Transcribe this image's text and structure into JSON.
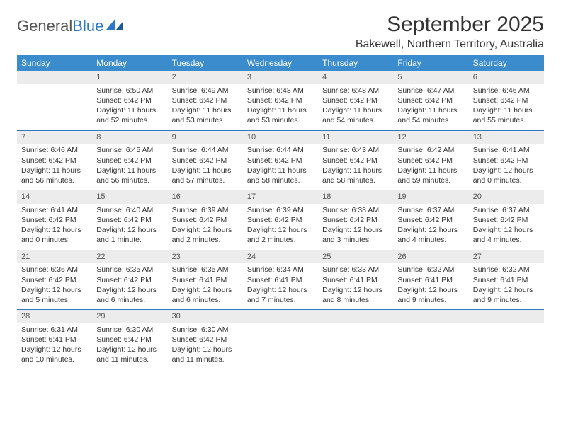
{
  "logo": {
    "text1": "General",
    "text2": "Blue"
  },
  "title": "September 2025",
  "location": "Bakewell, Northern Territory, Australia",
  "colors": {
    "header_bg": "#3b8ccc",
    "header_text": "#ffffff",
    "rule": "#2b78c5",
    "daynum_bg": "#ececec",
    "text": "#333333"
  },
  "weekday_labels": [
    "Sunday",
    "Monday",
    "Tuesday",
    "Wednesday",
    "Thursday",
    "Friday",
    "Saturday"
  ],
  "weeks": [
    [
      {
        "day": "",
        "sunrise": "",
        "sunset": "",
        "daylight": ""
      },
      {
        "day": "1",
        "sunrise": "Sunrise: 6:50 AM",
        "sunset": "Sunset: 6:42 PM",
        "daylight": "Daylight: 11 hours and 52 minutes."
      },
      {
        "day": "2",
        "sunrise": "Sunrise: 6:49 AM",
        "sunset": "Sunset: 6:42 PM",
        "daylight": "Daylight: 11 hours and 53 minutes."
      },
      {
        "day": "3",
        "sunrise": "Sunrise: 6:48 AM",
        "sunset": "Sunset: 6:42 PM",
        "daylight": "Daylight: 11 hours and 53 minutes."
      },
      {
        "day": "4",
        "sunrise": "Sunrise: 6:48 AM",
        "sunset": "Sunset: 6:42 PM",
        "daylight": "Daylight: 11 hours and 54 minutes."
      },
      {
        "day": "5",
        "sunrise": "Sunrise: 6:47 AM",
        "sunset": "Sunset: 6:42 PM",
        "daylight": "Daylight: 11 hours and 54 minutes."
      },
      {
        "day": "6",
        "sunrise": "Sunrise: 6:46 AM",
        "sunset": "Sunset: 6:42 PM",
        "daylight": "Daylight: 11 hours and 55 minutes."
      }
    ],
    [
      {
        "day": "7",
        "sunrise": "Sunrise: 6:46 AM",
        "sunset": "Sunset: 6:42 PM",
        "daylight": "Daylight: 11 hours and 56 minutes."
      },
      {
        "day": "8",
        "sunrise": "Sunrise: 6:45 AM",
        "sunset": "Sunset: 6:42 PM",
        "daylight": "Daylight: 11 hours and 56 minutes."
      },
      {
        "day": "9",
        "sunrise": "Sunrise: 6:44 AM",
        "sunset": "Sunset: 6:42 PM",
        "daylight": "Daylight: 11 hours and 57 minutes."
      },
      {
        "day": "10",
        "sunrise": "Sunrise: 6:44 AM",
        "sunset": "Sunset: 6:42 PM",
        "daylight": "Daylight: 11 hours and 58 minutes."
      },
      {
        "day": "11",
        "sunrise": "Sunrise: 6:43 AM",
        "sunset": "Sunset: 6:42 PM",
        "daylight": "Daylight: 11 hours and 58 minutes."
      },
      {
        "day": "12",
        "sunrise": "Sunrise: 6:42 AM",
        "sunset": "Sunset: 6:42 PM",
        "daylight": "Daylight: 11 hours and 59 minutes."
      },
      {
        "day": "13",
        "sunrise": "Sunrise: 6:41 AM",
        "sunset": "Sunset: 6:42 PM",
        "daylight": "Daylight: 12 hours and 0 minutes."
      }
    ],
    [
      {
        "day": "14",
        "sunrise": "Sunrise: 6:41 AM",
        "sunset": "Sunset: 6:42 PM",
        "daylight": "Daylight: 12 hours and 0 minutes."
      },
      {
        "day": "15",
        "sunrise": "Sunrise: 6:40 AM",
        "sunset": "Sunset: 6:42 PM",
        "daylight": "Daylight: 12 hours and 1 minute."
      },
      {
        "day": "16",
        "sunrise": "Sunrise: 6:39 AM",
        "sunset": "Sunset: 6:42 PM",
        "daylight": "Daylight: 12 hours and 2 minutes."
      },
      {
        "day": "17",
        "sunrise": "Sunrise: 6:39 AM",
        "sunset": "Sunset: 6:42 PM",
        "daylight": "Daylight: 12 hours and 2 minutes."
      },
      {
        "day": "18",
        "sunrise": "Sunrise: 6:38 AM",
        "sunset": "Sunset: 6:42 PM",
        "daylight": "Daylight: 12 hours and 3 minutes."
      },
      {
        "day": "19",
        "sunrise": "Sunrise: 6:37 AM",
        "sunset": "Sunset: 6:42 PM",
        "daylight": "Daylight: 12 hours and 4 minutes."
      },
      {
        "day": "20",
        "sunrise": "Sunrise: 6:37 AM",
        "sunset": "Sunset: 6:42 PM",
        "daylight": "Daylight: 12 hours and 4 minutes."
      }
    ],
    [
      {
        "day": "21",
        "sunrise": "Sunrise: 6:36 AM",
        "sunset": "Sunset: 6:42 PM",
        "daylight": "Daylight: 12 hours and 5 minutes."
      },
      {
        "day": "22",
        "sunrise": "Sunrise: 6:35 AM",
        "sunset": "Sunset: 6:42 PM",
        "daylight": "Daylight: 12 hours and 6 minutes."
      },
      {
        "day": "23",
        "sunrise": "Sunrise: 6:35 AM",
        "sunset": "Sunset: 6:41 PM",
        "daylight": "Daylight: 12 hours and 6 minutes."
      },
      {
        "day": "24",
        "sunrise": "Sunrise: 6:34 AM",
        "sunset": "Sunset: 6:41 PM",
        "daylight": "Daylight: 12 hours and 7 minutes."
      },
      {
        "day": "25",
        "sunrise": "Sunrise: 6:33 AM",
        "sunset": "Sunset: 6:41 PM",
        "daylight": "Daylight: 12 hours and 8 minutes."
      },
      {
        "day": "26",
        "sunrise": "Sunrise: 6:32 AM",
        "sunset": "Sunset: 6:41 PM",
        "daylight": "Daylight: 12 hours and 9 minutes."
      },
      {
        "day": "27",
        "sunrise": "Sunrise: 6:32 AM",
        "sunset": "Sunset: 6:41 PM",
        "daylight": "Daylight: 12 hours and 9 minutes."
      }
    ],
    [
      {
        "day": "28",
        "sunrise": "Sunrise: 6:31 AM",
        "sunset": "Sunset: 6:41 PM",
        "daylight": "Daylight: 12 hours and 10 minutes."
      },
      {
        "day": "29",
        "sunrise": "Sunrise: 6:30 AM",
        "sunset": "Sunset: 6:42 PM",
        "daylight": "Daylight: 12 hours and 11 minutes."
      },
      {
        "day": "30",
        "sunrise": "Sunrise: 6:30 AM",
        "sunset": "Sunset: 6:42 PM",
        "daylight": "Daylight: 12 hours and 11 minutes."
      },
      {
        "day": "",
        "sunrise": "",
        "sunset": "",
        "daylight": ""
      },
      {
        "day": "",
        "sunrise": "",
        "sunset": "",
        "daylight": ""
      },
      {
        "day": "",
        "sunrise": "",
        "sunset": "",
        "daylight": ""
      },
      {
        "day": "",
        "sunrise": "",
        "sunset": "",
        "daylight": ""
      }
    ]
  ]
}
